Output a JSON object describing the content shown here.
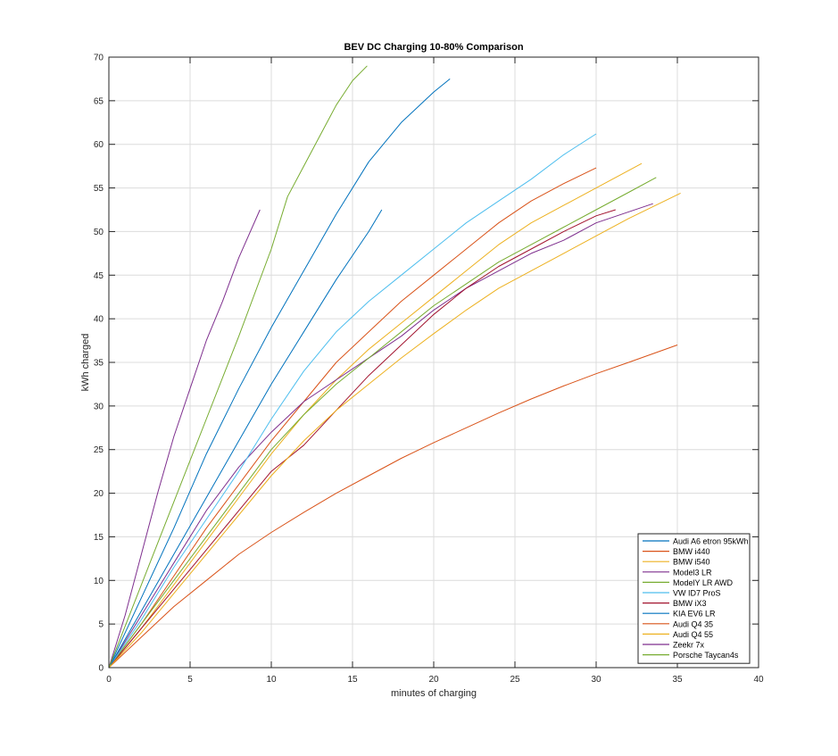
{
  "chart_data": {
    "type": "line",
    "title": "BEV DC Charging 10-80% Comparison",
    "xlabel": "minutes of charging",
    "ylabel": "kWh charged",
    "xlim": [
      0,
      40
    ],
    "ylim": [
      0,
      70
    ],
    "xticks": [
      0,
      5,
      10,
      15,
      20,
      25,
      30,
      35,
      40
    ],
    "yticks": [
      0,
      5,
      10,
      15,
      20,
      25,
      30,
      35,
      40,
      45,
      50,
      55,
      60,
      65,
      70
    ],
    "grid": true,
    "legend_position": "bottom-right",
    "series": [
      {
        "name": "Audi A6 etron 95kWh",
        "color": "#0072BD",
        "x": [
          0,
          2,
          4,
          6,
          8,
          10,
          12,
          14,
          16,
          18,
          20,
          21
        ],
        "y": [
          0,
          8,
          16,
          24.5,
          32,
          39,
          45.5,
          52,
          58,
          62.5,
          66,
          67.5
        ]
      },
      {
        "name": "BMW i440",
        "color": "#D95319",
        "x": [
          0,
          2,
          4,
          6,
          8,
          10,
          12,
          14,
          16,
          18,
          20,
          22,
          24,
          26,
          28,
          30
        ],
        "y": [
          0,
          5,
          10.5,
          16,
          21,
          26,
          30.5,
          35,
          38.5,
          42,
          45,
          48,
          51,
          53.5,
          55.5,
          57.3
        ]
      },
      {
        "name": "BMW i540",
        "color": "#EDB120",
        "x": [
          0,
          2,
          4,
          6,
          8,
          10,
          12,
          14,
          16,
          18,
          20,
          22,
          24,
          26,
          28,
          30,
          32.8
        ],
        "y": [
          0,
          4.5,
          9.5,
          14.5,
          19.5,
          24.5,
          29,
          33,
          36.5,
          39.5,
          42.5,
          45.5,
          48.5,
          51,
          53,
          55,
          57.8
        ]
      },
      {
        "name": "Model3 LR",
        "color": "#7E2F8E",
        "x": [
          0,
          2,
          4,
          6,
          8,
          10,
          12,
          14,
          16,
          18,
          20,
          22,
          24,
          26,
          28,
          30,
          33.5
        ],
        "y": [
          0,
          6,
          12,
          18,
          23,
          27,
          30.5,
          33,
          35.5,
          38,
          41,
          43.5,
          45.5,
          47.5,
          49,
          51,
          53.2
        ]
      },
      {
        "name": "ModelY LR AWD",
        "color": "#77AC30",
        "x": [
          0,
          2,
          4,
          6,
          8,
          10,
          12,
          14,
          16,
          18,
          20,
          22,
          24,
          26,
          28,
          30,
          32,
          33.7
        ],
        "y": [
          0,
          5,
          10,
          15,
          20,
          25,
          29,
          32.5,
          35.5,
          38.5,
          41.5,
          44,
          46.5,
          48.5,
          50.5,
          52.5,
          54.5,
          56.2
        ]
      },
      {
        "name": "VW ID7 ProS",
        "color": "#4DBEEE",
        "x": [
          0,
          2,
          4,
          6,
          8,
          10,
          12,
          14,
          16,
          18,
          20,
          22,
          24,
          26,
          28,
          30
        ],
        "y": [
          0,
          5.5,
          11.5,
          17,
          22.5,
          28.5,
          34,
          38.5,
          42,
          45,
          48,
          51,
          53.5,
          56,
          58.8,
          61.2
        ]
      },
      {
        "name": "BMW iX3",
        "color": "#A2142F",
        "x": [
          0,
          2,
          4,
          6,
          8,
          10,
          12,
          14,
          16,
          18,
          20,
          22,
          24,
          26,
          28,
          30,
          31.2
        ],
        "y": [
          0,
          4.5,
          9,
          13.5,
          18,
          22.5,
          25.5,
          29.5,
          33.5,
          37,
          40.5,
          43.5,
          46,
          48,
          50,
          51.8,
          52.5
        ]
      },
      {
        "name": "KIA EV6 LR",
        "color": "#0072BD",
        "x": [
          0,
          2,
          4,
          6,
          8,
          10,
          12,
          14,
          16,
          16.8
        ],
        "y": [
          0,
          6.5,
          13,
          19.5,
          26,
          32.5,
          38.5,
          44.5,
          50,
          52.5
        ]
      },
      {
        "name": "Audi Q4 35",
        "color": "#D95319",
        "x": [
          0,
          2,
          4,
          6,
          8,
          10,
          12,
          14,
          16,
          18,
          20,
          22,
          24,
          26,
          28,
          30,
          32,
          35
        ],
        "y": [
          0,
          3.5,
          7,
          10,
          13,
          15.5,
          17.8,
          20,
          22,
          24,
          25.8,
          27.5,
          29.2,
          30.8,
          32.3,
          33.7,
          35,
          37
        ]
      },
      {
        "name": "Audi Q4 55",
        "color": "#EDB120",
        "x": [
          0,
          2,
          4,
          6,
          8,
          10,
          12,
          14,
          16,
          18,
          20,
          22,
          24,
          26,
          28,
          30,
          32,
          35.2
        ],
        "y": [
          0,
          4,
          8.5,
          13,
          17.5,
          22,
          26,
          29.5,
          32.5,
          35.5,
          38.3,
          41,
          43.5,
          45.5,
          47.5,
          49.5,
          51.5,
          54.4
        ]
      },
      {
        "name": "Zeekr 7x",
        "color": "#7E2F8E",
        "x": [
          0,
          1,
          2,
          3,
          4,
          5,
          6,
          7,
          8,
          9.3
        ],
        "y": [
          0,
          6,
          13,
          20,
          26.5,
          32,
          37.5,
          42,
          47,
          52.5
        ]
      },
      {
        "name": "Porsche Taycan4s",
        "color": "#77AC30",
        "x": [
          0,
          2,
          4,
          6,
          8,
          10,
          11,
          12,
          13,
          14,
          15,
          15.9
        ],
        "y": [
          0,
          9.5,
          19,
          28.5,
          38,
          48,
          54,
          57.5,
          61,
          64.5,
          67.3,
          69
        ]
      }
    ]
  }
}
